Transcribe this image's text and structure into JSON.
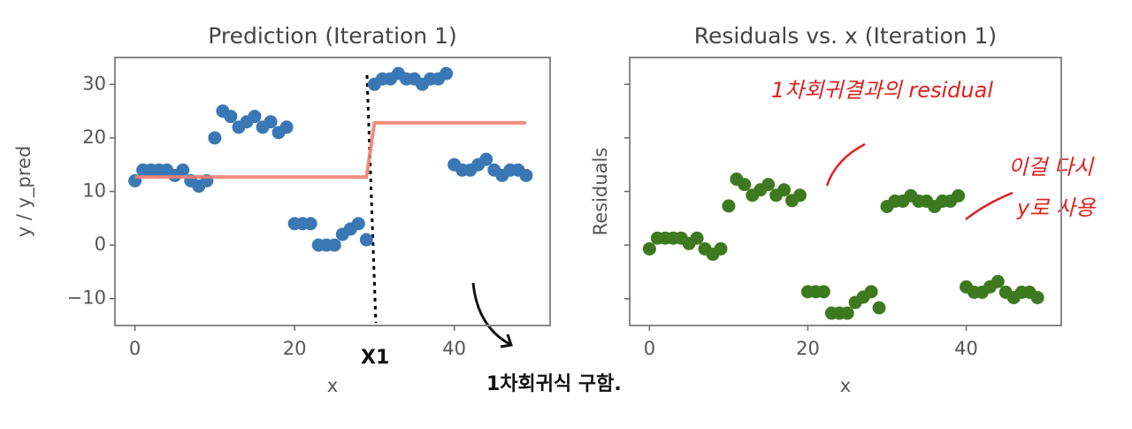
{
  "chart_data": [
    {
      "type": "scatter",
      "title": "Prediction (Iteration 1)",
      "xlabel": "x",
      "ylabel": "y / y_pred",
      "xlim": [
        -2.5,
        52
      ],
      "ylim": [
        -15,
        35
      ],
      "xticks": [
        0,
        20,
        40
      ],
      "yticks": [
        {
          "value": -10,
          "label": "−10"
        },
        0,
        10,
        20,
        30
      ],
      "show_ytick_labels": true,
      "series": [
        {
          "kind": "points",
          "color": "#3a78b5",
          "x": [
            0,
            1,
            2,
            3,
            4,
            5,
            6,
            7,
            8,
            9,
            10,
            11,
            12,
            13,
            14,
            15,
            16,
            17,
            18,
            19,
            20,
            21,
            22,
            23,
            24,
            25,
            26,
            27,
            28,
            29,
            30,
            31,
            32,
            33,
            34,
            35,
            36,
            37,
            38,
            39,
            40,
            41,
            42,
            43,
            44,
            45,
            46,
            47,
            48,
            49
          ],
          "values": [
            12,
            14,
            14,
            14,
            14,
            13,
            14,
            12,
            11,
            12,
            20,
            25,
            24,
            22,
            23,
            24,
            22,
            23,
            21,
            22,
            4,
            4,
            4,
            0,
            0,
            0,
            2,
            3,
            4,
            1,
            30,
            31,
            31,
            32,
            31,
            31,
            30,
            31,
            31,
            32,
            15,
            14,
            14,
            15,
            16,
            14,
            13,
            14,
            14,
            13
          ]
        },
        {
          "kind": "line",
          "color": "#f08070",
          "x": [
            0,
            29,
            30,
            49
          ],
          "values": [
            12.7,
            12.7,
            22.8,
            22.8
          ]
        }
      ],
      "annotations": [
        "X1",
        "1차회귀식 구함."
      ]
    },
    {
      "type": "scatter",
      "title": "Residuals vs. x (Iteration 1)",
      "xlabel": "x",
      "ylabel": "Residuals",
      "xlim": [
        -2.5,
        52
      ],
      "ylim": [
        -15,
        35
      ],
      "xticks": [
        0,
        20,
        40
      ],
      "yticks": [
        -10,
        0,
        10,
        20,
        30
      ],
      "show_ytick_labels": false,
      "series": [
        {
          "kind": "points",
          "color": "#3d7a1f",
          "x": [
            0,
            1,
            2,
            3,
            4,
            5,
            6,
            7,
            8,
            9,
            10,
            11,
            12,
            13,
            14,
            15,
            16,
            17,
            18,
            19,
            20,
            21,
            22,
            23,
            24,
            25,
            26,
            27,
            28,
            29,
            30,
            31,
            32,
            33,
            34,
            35,
            36,
            37,
            38,
            39,
            40,
            41,
            42,
            43,
            44,
            45,
            46,
            47,
            48,
            49
          ],
          "values": [
            -0.7,
            1.3,
            1.3,
            1.3,
            1.3,
            0.3,
            1.3,
            -0.7,
            -1.7,
            -0.7,
            7.3,
            12.3,
            11.3,
            9.3,
            10.3,
            11.3,
            9.3,
            10.3,
            8.3,
            9.3,
            -8.7,
            -8.7,
            -8.7,
            -12.7,
            -12.7,
            -12.7,
            -10.7,
            -9.7,
            -8.7,
            -11.7,
            7.2,
            8.2,
            8.2,
            9.2,
            8.2,
            8.2,
            7.2,
            8.2,
            8.2,
            9.2,
            -7.8,
            -8.8,
            -8.8,
            -7.8,
            -6.8,
            -8.8,
            -9.8,
            -8.8,
            -8.8,
            -9.8
          ]
        }
      ],
      "annotations": [
        "1차회귀결과의 residual",
        "이걸 다시",
        "y로 사용"
      ]
    }
  ]
}
